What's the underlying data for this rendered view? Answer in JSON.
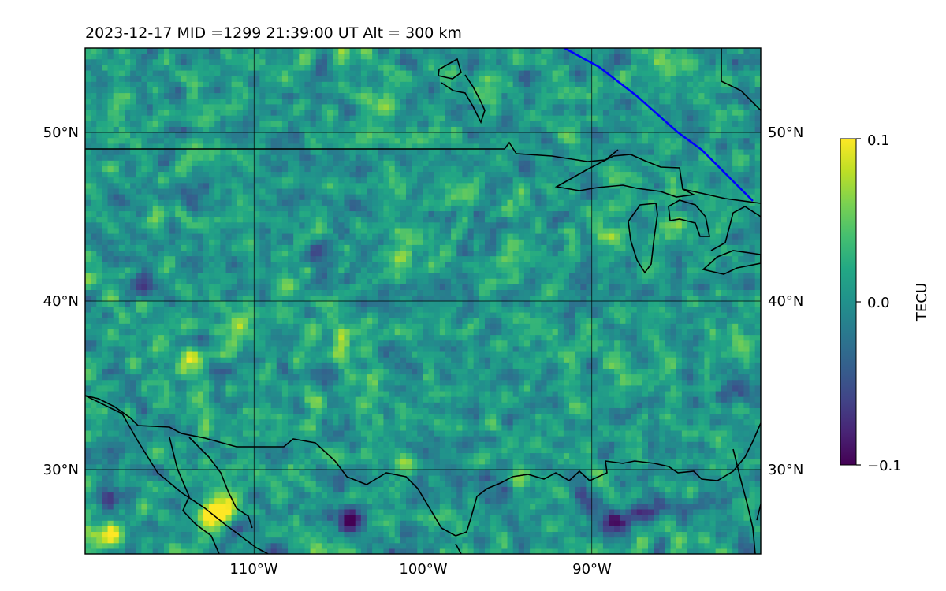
{
  "figure": {
    "title": "2023-12-17  MID =1299    21:39:00  UT  Alt = 300 km"
  },
  "map": {
    "lon_range": [
      -120,
      -80
    ],
    "lat_range": [
      25,
      55
    ],
    "lon_gridlines": [
      -110,
      -100,
      -90
    ],
    "lat_gridlines": [
      30,
      40,
      50
    ],
    "lon_tick_labels": [
      "110°W",
      "100°W",
      "90°W"
    ],
    "lat_tick_labels": [
      "30°N",
      "40°N",
      "50°N"
    ],
    "coastline_color": "#000000",
    "terminator_color": "#0000ff"
  },
  "chart_data": {
    "type": "heatmap",
    "title": "2023-12-17  MID =1299    21:39:00  UT  Alt = 300 km",
    "xlabel": "",
    "ylabel": "",
    "xlim": [
      -120,
      -80
    ],
    "ylim": [
      25,
      55
    ],
    "colormap": "viridis",
    "value_range": [
      -0.1,
      0.1
    ],
    "hotspots": [
      {
        "lon": -118.8,
        "lat": 26.0,
        "value": 0.1
      },
      {
        "lon": -112.5,
        "lat": 27.2,
        "value": 0.1
      },
      {
        "lon": -111.5,
        "lat": 28.0,
        "value": 0.09
      },
      {
        "lon": -114.0,
        "lat": 36.5,
        "value": 0.07
      },
      {
        "lon": -111.0,
        "lat": 38.7,
        "value": 0.06
      },
      {
        "lon": -105.0,
        "lat": 37.0,
        "value": 0.05
      },
      {
        "lon": -104.5,
        "lat": 27.0,
        "value": -0.09
      },
      {
        "lon": -88.5,
        "lat": 27.0,
        "value": -0.1
      },
      {
        "lon": -86.5,
        "lat": 27.5,
        "value": -0.08
      },
      {
        "lon": -90.5,
        "lat": 28.2,
        "value": -0.06
      },
      {
        "lon": -96.0,
        "lat": 29.0,
        "value": -0.05
      },
      {
        "lon": -110.8,
        "lat": 26.7,
        "value": -0.05
      },
      {
        "lon": -106.0,
        "lat": 42.6,
        "value": -0.05
      },
      {
        "lon": -116.5,
        "lat": 41.0,
        "value": -0.04
      },
      {
        "lon": -89.0,
        "lat": 44.0,
        "value": 0.05
      },
      {
        "lon": -85.5,
        "lat": 44.5,
        "value": 0.04
      },
      {
        "lon": -95.0,
        "lat": 42.5,
        "value": 0.045
      },
      {
        "lon": -100.5,
        "lat": 44.0,
        "value": 0.04
      },
      {
        "lon": -118.5,
        "lat": 28.5,
        "value": -0.06
      },
      {
        "lon": -81.5,
        "lat": 34.5,
        "value": -0.04
      }
    ],
    "colorbar": {
      "label": "TECU",
      "ticks": [
        0.1,
        0.0,
        -0.1
      ],
      "tick_labels": [
        "0.1",
        "0.0",
        "−0.1"
      ]
    }
  }
}
